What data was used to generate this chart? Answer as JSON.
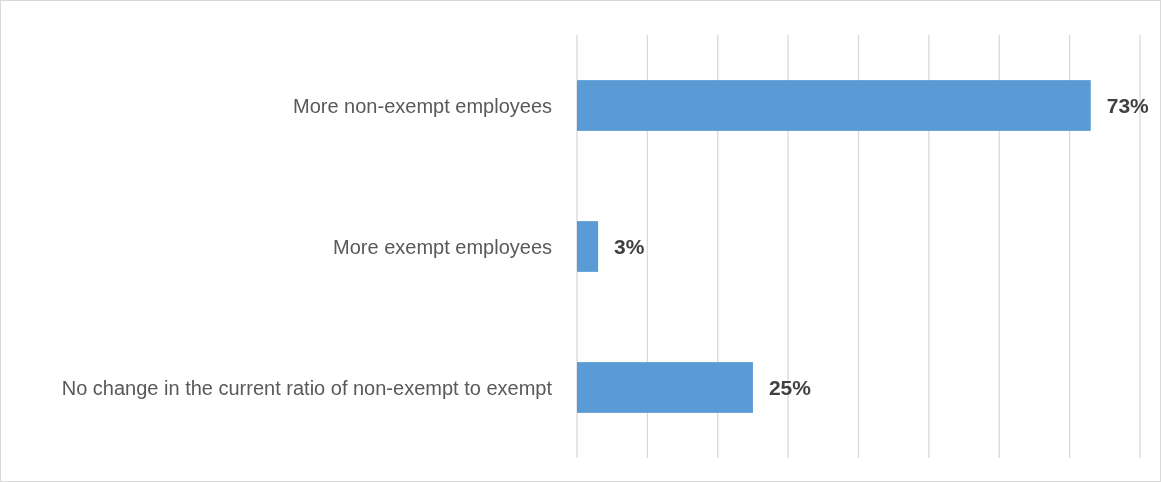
{
  "chart_data": {
    "type": "bar",
    "orientation": "horizontal",
    "categories": [
      "More non-exempt employees",
      "More exempt employees",
      "No change in the current ratio of non-exempt to exempt"
    ],
    "values": [
      73,
      3,
      25
    ],
    "color": "#5b9bd5",
    "data_labels": true,
    "value_labels": [
      "73%",
      "3%",
      "25%"
    ],
    "xlim": [
      0,
      80
    ],
    "xticks": [
      {
        "value": 0,
        "label": null
      },
      {
        "value": 10,
        "label": null
      },
      {
        "value": 20,
        "label": null
      },
      {
        "value": 30,
        "label": null
      },
      {
        "value": 40,
        "label": null
      },
      {
        "value": 50,
        "label": null
      },
      {
        "value": 60,
        "label": null
      },
      {
        "value": 70,
        "label": null
      },
      {
        "value": 80,
        "label": null
      }
    ],
    "grid": "x",
    "tick_labels": "y"
  }
}
